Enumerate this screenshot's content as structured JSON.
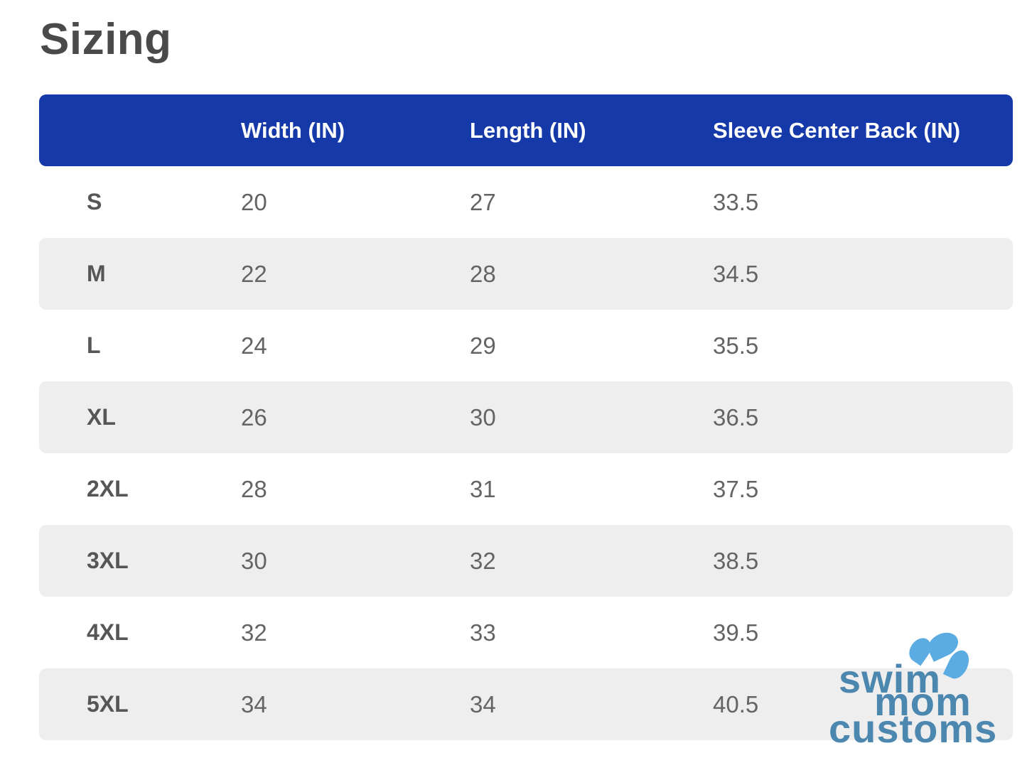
{
  "page": {
    "title": "Sizing"
  },
  "table": {
    "columns": [
      "Width (IN)",
      "Length (IN)",
      "Sleeve Center Back (IN)"
    ],
    "rows": [
      {
        "size": "S",
        "width": "20",
        "length": "27",
        "sleeve": "33.5"
      },
      {
        "size": "M",
        "width": "22",
        "length": "28",
        "sleeve": "34.5"
      },
      {
        "size": "L",
        "width": "24",
        "length": "29",
        "sleeve": "35.5"
      },
      {
        "size": "XL",
        "width": "26",
        "length": "30",
        "sleeve": "36.5"
      },
      {
        "size": "2XL",
        "width": "28",
        "length": "31",
        "sleeve": "37.5"
      },
      {
        "size": "3XL",
        "width": "30",
        "length": "32",
        "sleeve": "38.5"
      },
      {
        "size": "4XL",
        "width": "32",
        "length": "33",
        "sleeve": "39.5"
      },
      {
        "size": "5XL",
        "width": "34",
        "length": "34",
        "sleeve": "40.5"
      }
    ]
  },
  "logo": {
    "line1": "swim",
    "line2": "mom",
    "line3": "customs"
  },
  "colors": {
    "header_bg": "#1539a8",
    "header_text": "#ffffff",
    "row_alt_bg": "#efeeee",
    "title_text": "#4a4a4a",
    "size_text": "#565656",
    "value_text": "#646464",
    "logo_text": "#4c87b0",
    "logo_drop": "#5aace3"
  }
}
